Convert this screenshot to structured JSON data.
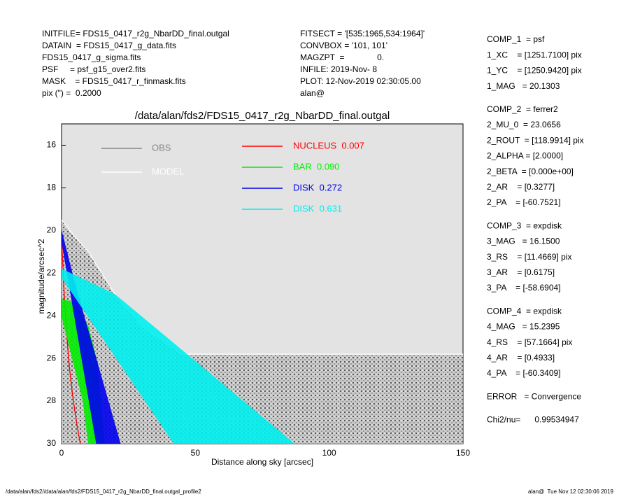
{
  "header": {
    "left": [
      "INITFILE= FDS15_0417_r2g_NbarDD_final.outgal",
      "DATAIN  = FDS15_0417_g_data.fits",
      "FDS15_0417_g_sigma.fits",
      "PSF     = psf_g15_over2.fits",
      "MASK    = FDS15_0417_r_finmask.fits",
      "pix (\") =  0.2000"
    ],
    "middle": [
      "FITSECT = '[535:1965,534:1964]'",
      "CONVBOX = '101, 101'",
      "MAGZPT  =              0.",
      "INFILE: 2019-Nov- 8",
      "PLOT: 12-Nov-2019 02:30:05.00",
      "alan@"
    ]
  },
  "parameters": [
    [
      "COMP_1  = psf",
      "1_XC    = [1251.7100] pix",
      "1_YC    = [1250.9420] pix",
      "1_MAG   = 20.1303"
    ],
    [
      "COMP_2  = ferrer2",
      "2_MU_0  = 23.0656",
      "2_ROUT  = [118.9914] pix",
      "2_ALPHA = [2.0000]",
      "2_BETA  = [0.000e+00]",
      "2_AR    = [0.3277]",
      "2_PA    = [-60.7521]"
    ],
    [
      "COMP_3  = expdisk",
      "3_MAG   = 16.1500",
      "3_RS    = [11.4669] pix",
      "3_AR    = [0.6175]",
      "3_PA    = [-58.6904]"
    ],
    [
      "COMP_4  = expdisk",
      "4_MAG   = 15.2395",
      "4_RS    = [57.1664] pix",
      "4_AR    = [0.4933]",
      "4_PA    = [-60.3409]"
    ],
    [
      "ERROR   = Convergence"
    ],
    [
      "Chi2/nu=      0.99534947"
    ]
  ],
  "footer": {
    "left": "/data/alan/fds2//data/alan/fds2/FDS15_0417_r2g_NbarDD_final.outgal_profile2",
    "right": "alan@  Tue Nov 12 02:30:06 2019"
  },
  "chart_data": {
    "type": "area",
    "title": "/data/alan/fds2/FDS15_0417_r2g_NbarDD_final.outgal",
    "x_label": "Distance along sky [arcsec]",
    "y_label": "magnitude/arcsec^2",
    "xlim": [
      0,
      150
    ],
    "xticks": [
      0,
      50,
      100,
      150
    ],
    "ylim": [
      30,
      15
    ],
    "yticks": [
      16,
      18,
      20,
      22,
      24,
      26,
      28,
      30
    ],
    "series": [
      {
        "name": "OBS",
        "color": "#888888",
        "x": [
          0,
          5,
          10,
          20,
          30,
          45,
          150,
          150,
          0
        ],
        "values": [
          19.5,
          20.3,
          21,
          23,
          24.5,
          25.8,
          25.8,
          30,
          30
        ]
      },
      {
        "name": "MODEL",
        "color": "#ffffff",
        "x": [
          0,
          5,
          10,
          20,
          30,
          45,
          150
        ],
        "values": [
          19.5,
          20.3,
          21,
          23,
          24.5,
          25.8,
          25.8
        ]
      },
      {
        "name": "NUCLEUS  0.007",
        "color": "#ff0000",
        "x": [
          0,
          1,
          2,
          3,
          4,
          5,
          6,
          7
        ],
        "values": [
          20.3,
          23,
          25,
          26.5,
          27.6,
          28.5,
          29.3,
          30
        ]
      },
      {
        "name": "BAR  0.090",
        "color": "#00ee00",
        "x": [
          0,
          5,
          10,
          13,
          15,
          16,
          10,
          8,
          4,
          0
        ],
        "values": [
          23.2,
          23.4,
          24.5,
          26,
          28.5,
          30,
          30,
          28,
          26,
          24
        ]
      },
      {
        "name": "DISK  0.272",
        "color": "#0000ee",
        "x": [
          0,
          5,
          22,
          13,
          0
        ],
        "values": [
          20,
          22.5,
          30,
          30,
          20.5
        ]
      },
      {
        "name": "DISK  0.631",
        "color": "#00eeee",
        "x": [
          0,
          20,
          87,
          42,
          0
        ],
        "values": [
          21.8,
          23,
          30,
          30,
          22.2
        ]
      }
    ]
  }
}
